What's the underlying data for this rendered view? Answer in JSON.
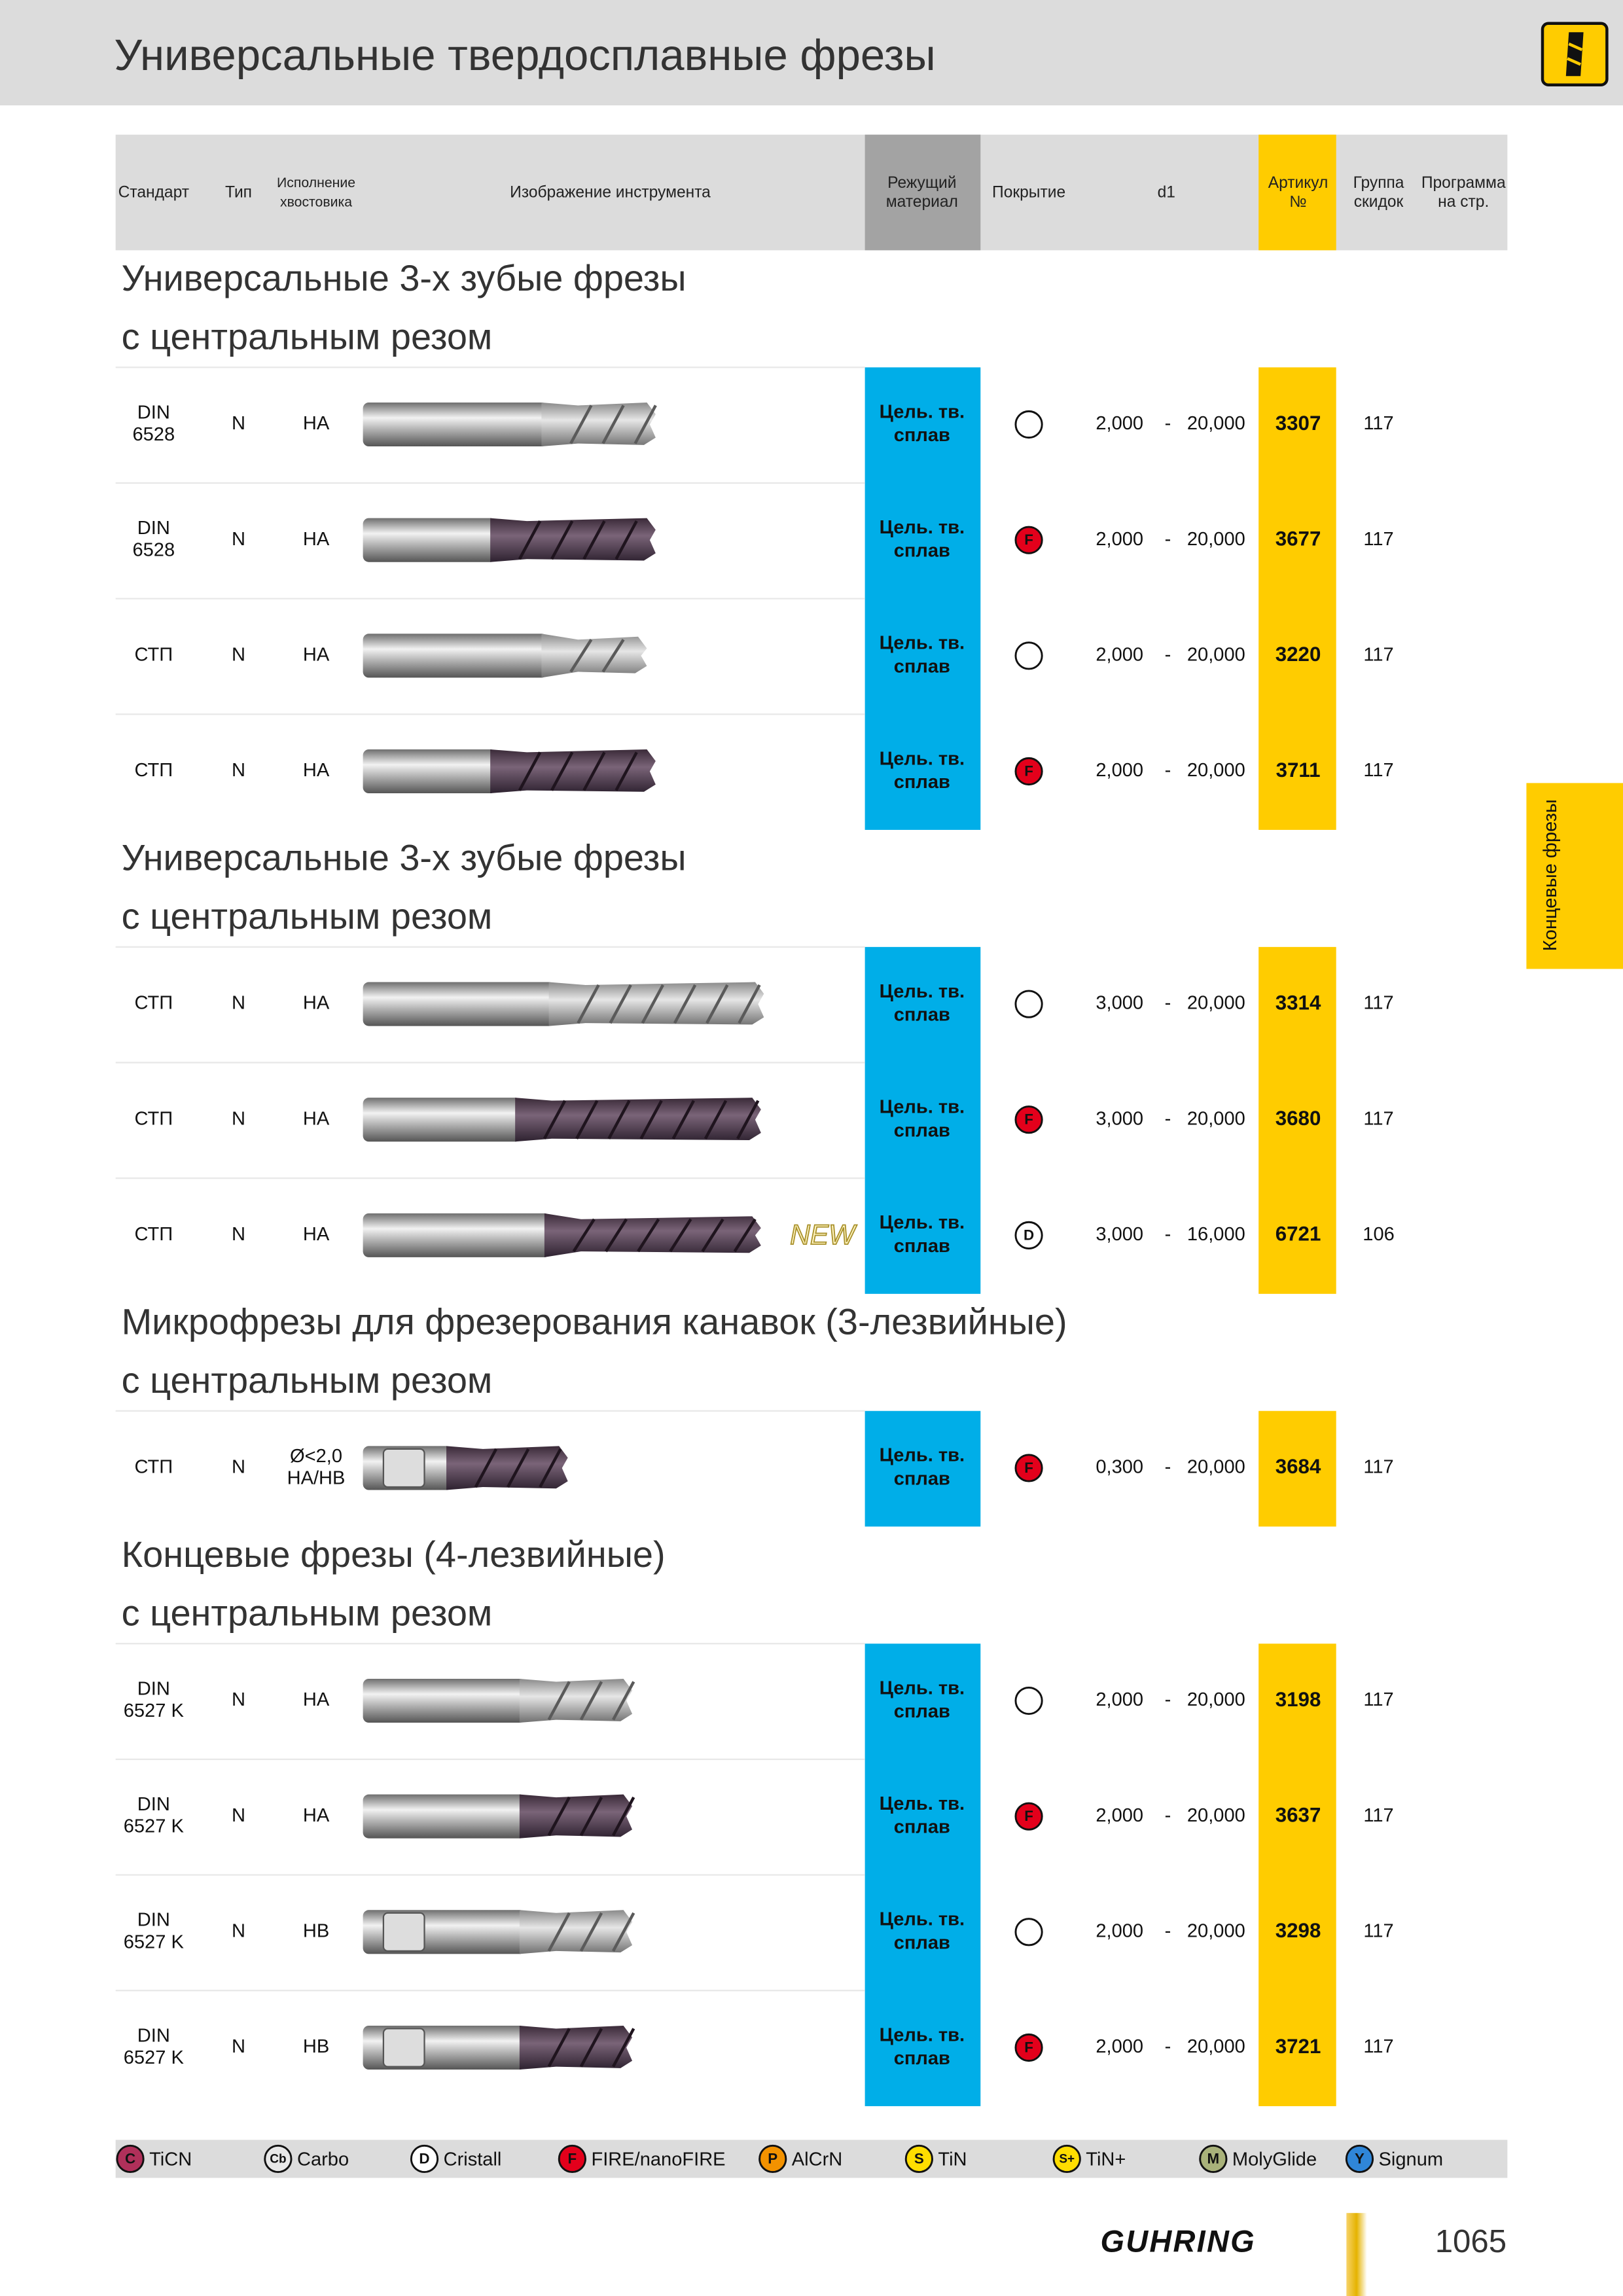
{
  "header": {
    "title": "Универсальные твердосплавные фрезы"
  },
  "columns": [
    {
      "label": [
        "Стандарт"
      ]
    },
    {
      "label": [
        "Тип"
      ]
    },
    {
      "label": [
        "Исполнение",
        "хвостовика"
      ]
    },
    {
      "label": [
        "Изображение инструмента"
      ]
    },
    {
      "label": [
        "Режущий",
        "материал"
      ]
    },
    {
      "label": [
        "Покрытие"
      ]
    },
    {
      "label": [
        "d1"
      ]
    },
    {
      "label": [
        "Артикул",
        "№"
      ]
    },
    {
      "label": [
        "Группа",
        "скидок"
      ]
    },
    {
      "label": [
        "Программа",
        "на стр."
      ]
    }
  ],
  "sections": [
    {
      "title": [
        "Универсальные 3-х зубые фрезы",
        "с центральным резом"
      ],
      "rows": [
        {
          "standard": [
            "DIN",
            "6528"
          ],
          "type": "N",
          "shank": [
            "HA"
          ],
          "material": [
            "Цель. тв.",
            "сплав"
          ],
          "coating": null,
          "d_min": "2,000",
          "d_sep": "-",
          "d_max": "20,000",
          "article": "3307",
          "group": "117"
        },
        {
          "standard": [
            "DIN",
            "6528"
          ],
          "type": "N",
          "shank": [
            "HA"
          ],
          "material": [
            "Цель. тв.",
            "сплав"
          ],
          "coating": "F",
          "d_min": "2,000",
          "d_sep": "-",
          "d_max": "20,000",
          "article": "3677",
          "group": "117"
        },
        {
          "standard": [
            "СТП"
          ],
          "type": "N",
          "shank": [
            "HA"
          ],
          "material": [
            "Цель. тв.",
            "сплав"
          ],
          "coating": null,
          "d_min": "2,000",
          "d_sep": "-",
          "d_max": "20,000",
          "article": "3220",
          "group": "117"
        },
        {
          "standard": [
            "СТП"
          ],
          "type": "N",
          "shank": [
            "HA"
          ],
          "material": [
            "Цель. тв.",
            "сплав"
          ],
          "coating": "F",
          "d_min": "2,000",
          "d_sep": "-",
          "d_max": "20,000",
          "article": "3711",
          "group": "117"
        }
      ]
    },
    {
      "title": [
        "Универсальные 3-х зубые фрезы",
        "с центральным резом"
      ],
      "rows": [
        {
          "standard": [
            "СТП"
          ],
          "type": "N",
          "shank": [
            "HA"
          ],
          "material": [
            "Цель. тв.",
            "сплав"
          ],
          "coating": null,
          "d_min": "3,000",
          "d_sep": "-",
          "d_max": "20,000",
          "article": "3314",
          "group": "117"
        },
        {
          "standard": [
            "СТП"
          ],
          "type": "N",
          "shank": [
            "HA"
          ],
          "material": [
            "Цель. тв.",
            "сплав"
          ],
          "coating": "F",
          "d_min": "3,000",
          "d_sep": "-",
          "d_max": "20,000",
          "article": "3680",
          "group": "117"
        },
        {
          "standard": [
            "СТП"
          ],
          "type": "N",
          "shank": [
            "HA"
          ],
          "material": [
            "Цель. тв.",
            "сплав"
          ],
          "coating": "D",
          "d_min": "3,000",
          "d_sep": "-",
          "d_max": "16,000",
          "article": "6721",
          "group": "106",
          "badge": "NEW"
        }
      ]
    },
    {
      "title": [
        "Микрофрезы для фрезерования канавок (3-лезвийные)",
        "с центральным резом"
      ],
      "rows": [
        {
          "standard": [
            "СТП"
          ],
          "type": "N",
          "shank": [
            "Ø<2,0",
            "HA/HB"
          ],
          "material": [
            "Цель. тв.",
            "сплав"
          ],
          "coating": "F",
          "d_min": "0,300",
          "d_sep": "-",
          "d_max": "20,000",
          "article": "3684",
          "group": "117"
        }
      ]
    },
    {
      "title": [
        "Концевые  фрезы (4-лезвийные)",
        "с центральным резом"
      ],
      "rows": [
        {
          "standard": [
            "DIN",
            "6527 K"
          ],
          "type": "N",
          "shank": [
            "HA"
          ],
          "material": [
            "Цель. тв.",
            "сплав"
          ],
          "coating": null,
          "d_min": "2,000",
          "d_sep": "-",
          "d_max": "20,000",
          "article": "3198",
          "group": "117"
        },
        {
          "standard": [
            "DIN",
            "6527 K"
          ],
          "type": "N",
          "shank": [
            "HA"
          ],
          "material": [
            "Цель. тв.",
            "сплав"
          ],
          "coating": "F",
          "d_min": "2,000",
          "d_sep": "-",
          "d_max": "20,000",
          "article": "3637",
          "group": "117"
        },
        {
          "standard": [
            "DIN",
            "6527 K"
          ],
          "type": "N",
          "shank": [
            "HB"
          ],
          "material": [
            "Цель. тв.",
            "сплав"
          ],
          "coating": null,
          "d_min": "2,000",
          "d_sep": "-",
          "d_max": "20,000",
          "article": "3298",
          "group": "117"
        },
        {
          "standard": [
            "DIN",
            "6527 K"
          ],
          "type": "N",
          "shank": [
            "HB"
          ],
          "material": [
            "Цель. тв.",
            "сплав"
          ],
          "coating": "F",
          "d_min": "2,000",
          "d_sep": "-",
          "d_max": "20,000",
          "article": "3721",
          "group": "117"
        }
      ]
    }
  ],
  "legend": [
    {
      "symbol": "C",
      "label": "TiCN",
      "color": "#b0305a"
    },
    {
      "symbol": "Cb",
      "label": "Carbo",
      "color": "#e8e8e8"
    },
    {
      "symbol": "D",
      "label": "Cristall",
      "color": "#ffffff"
    },
    {
      "symbol": "F",
      "label": "FIRE/nanoFIRE",
      "color": "#e3001b"
    },
    {
      "symbol": "P",
      "label": "AlCrN",
      "color": "#f39200"
    },
    {
      "symbol": "S",
      "label": "TiN",
      "color": "#ffdd00"
    },
    {
      "symbol": "S+",
      "label": "TiN+",
      "color": "#ffdd00"
    },
    {
      "symbol": "M",
      "label": "MolyGlide",
      "color": "#a9b27a"
    },
    {
      "symbol": "Y",
      "label": "Signum",
      "color": "#2f86d8"
    }
  ],
  "side_tab": "Концевые фрезы",
  "footer": {
    "brand": "GUHRING",
    "page": "1065"
  }
}
